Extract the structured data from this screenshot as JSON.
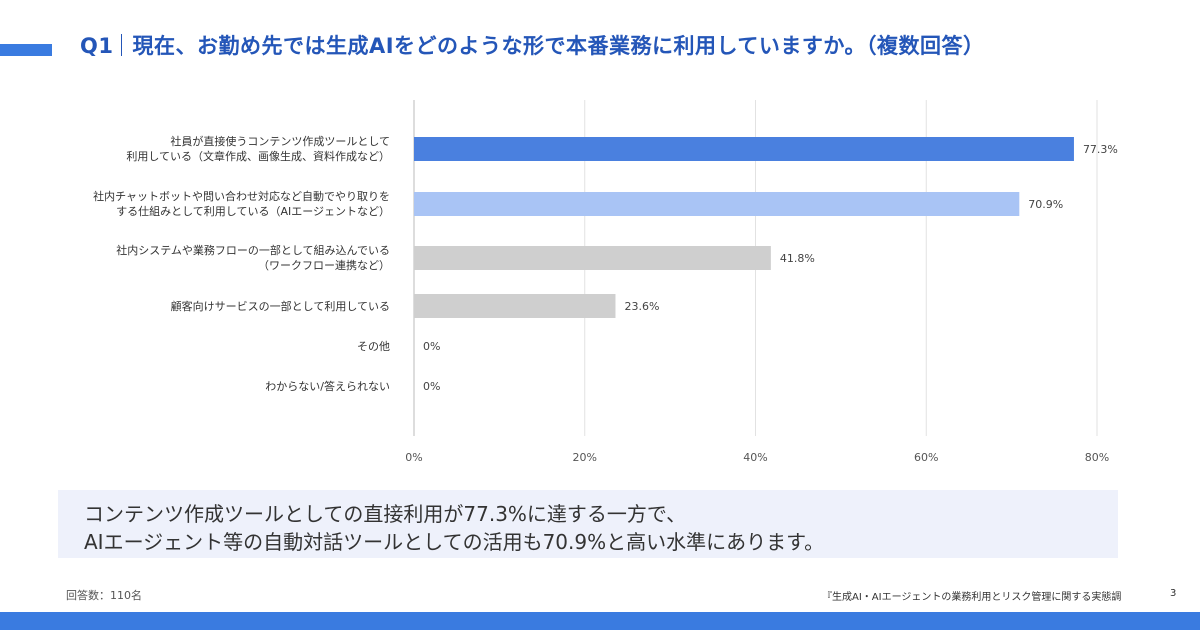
{
  "header": {
    "q_label": "Q1",
    "title": "現在、お勤め先では生成AIをどのような形で本番業務に利用していますか。（複数回答）"
  },
  "colors": {
    "accent": "#3a7be0",
    "title": "#2456b8",
    "bar_primary": "#4a80df",
    "bar_secondary": "#a9c4f5",
    "bar_neutral": "#cfcfcf"
  },
  "chart_data": {
    "type": "bar",
    "orientation": "horizontal",
    "categories": [
      "社員が直接使うコンテンツ作成ツールとして\n利用している（文章作成、画像生成、資料作成など）",
      "社内チャットボットや問い合わせ対応など自動でやり取りを\nする仕組みとして利用している（AIエージェントなど）",
      "社内システムや業務フローの一部として組み込んでいる\n（ワークフロー連携など）",
      "顧客向けサービスの一部として利用している",
      "その他",
      "わからない/答えられない"
    ],
    "values": [
      77.3,
      70.9,
      41.8,
      23.6,
      0,
      0
    ],
    "value_labels": [
      "77.3%",
      "70.9%",
      "41.8%",
      "23.6%",
      "0%",
      "0%"
    ],
    "bar_colors": [
      "#4a80df",
      "#a9c4f5",
      "#cfcfcf",
      "#cfcfcf",
      "#cfcfcf",
      "#cfcfcf"
    ],
    "xlim": [
      0,
      80
    ],
    "x_ticks": [
      "0%",
      "20%",
      "40%",
      "60%",
      "80%"
    ],
    "grid": true
  },
  "summary": {
    "line1": "コンテンツ作成ツールとしての直接利用が77.3%に達する一方で、",
    "line2": "AIエージェント等の自動対話ツールとしての活用も70.9%と高い水準にあります。"
  },
  "footer": {
    "respondents": "回答数：110名",
    "source": "『生成AI・AIエージェントの業務利用とリスク管理に関する実態調",
    "page": "3"
  }
}
